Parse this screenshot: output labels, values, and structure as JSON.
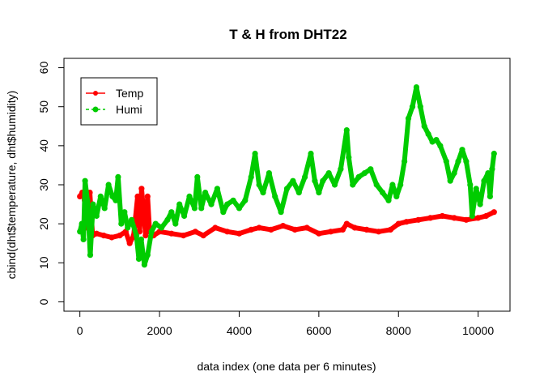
{
  "chart_data": {
    "type": "line",
    "title": "T & H from DHT22",
    "xlabel": "data index (one data per 6 minutes)",
    "ylabel": "cbind(dht$temperature, dht$humidity)",
    "xlim": [
      -400,
      10800
    ],
    "ylim": [
      -2.4,
      62.4
    ],
    "xticks": [
      "0",
      "2000",
      "4000",
      "6000",
      "8000",
      "10000"
    ],
    "yticks": [
      "0",
      "10",
      "20",
      "30",
      "40",
      "50",
      "60"
    ],
    "xtick_values": [
      0,
      2000,
      4000,
      6000,
      8000,
      10000
    ],
    "ytick_values": [
      0,
      10,
      20,
      30,
      40,
      50,
      60
    ],
    "grid": false,
    "legend_position": "top-left",
    "series": [
      {
        "name": "Temp",
        "color": "#ff0000",
        "style": "solid",
        "points": [
          [
            0,
            27
          ],
          [
            60,
            28
          ],
          [
            120,
            26
          ],
          [
            180,
            19
          ],
          [
            250,
            28
          ],
          [
            320,
            17
          ],
          [
            420,
            17.5
          ],
          [
            600,
            17
          ],
          [
            800,
            16.5
          ],
          [
            1000,
            17
          ],
          [
            1150,
            18
          ],
          [
            1250,
            15
          ],
          [
            1350,
            17
          ],
          [
            1450,
            27
          ],
          [
            1500,
            18
          ],
          [
            1550,
            29
          ],
          [
            1650,
            17
          ],
          [
            1700,
            27
          ],
          [
            1750,
            18
          ],
          [
            1850,
            17
          ],
          [
            2000,
            18
          ],
          [
            2300,
            17.5
          ],
          [
            2600,
            17
          ],
          [
            2900,
            18
          ],
          [
            3100,
            17
          ],
          [
            3400,
            19
          ],
          [
            3700,
            18
          ],
          [
            4000,
            17.5
          ],
          [
            4300,
            18.5
          ],
          [
            4500,
            19
          ],
          [
            4800,
            18.5
          ],
          [
            5100,
            19.5
          ],
          [
            5400,
            18.5
          ],
          [
            5700,
            19
          ],
          [
            6000,
            17.5
          ],
          [
            6300,
            18
          ],
          [
            6600,
            18.5
          ],
          [
            6700,
            20
          ],
          [
            6900,
            19
          ],
          [
            7200,
            18.5
          ],
          [
            7500,
            18
          ],
          [
            7800,
            18.5
          ],
          [
            8000,
            20
          ],
          [
            8200,
            20.5
          ],
          [
            8500,
            21
          ],
          [
            8800,
            21.5
          ],
          [
            9100,
            22
          ],
          [
            9400,
            21.5
          ],
          [
            9700,
            21
          ],
          [
            10000,
            21.5
          ],
          [
            10200,
            22
          ],
          [
            10400,
            23
          ]
        ]
      },
      {
        "name": "Humi",
        "color": "#00cc00",
        "style": "dashed",
        "points": [
          [
            0,
            18
          ],
          [
            50,
            20
          ],
          [
            90,
            16
          ],
          [
            130,
            31
          ],
          [
            190,
            26
          ],
          [
            260,
            12
          ],
          [
            330,
            25
          ],
          [
            420,
            22
          ],
          [
            520,
            27
          ],
          [
            620,
            24
          ],
          [
            720,
            30
          ],
          [
            820,
            27
          ],
          [
            900,
            26
          ],
          [
            960,
            32
          ],
          [
            1040,
            20
          ],
          [
            1120,
            23
          ],
          [
            1200,
            19
          ],
          [
            1300,
            21
          ],
          [
            1420,
            17
          ],
          [
            1480,
            11
          ],
          [
            1540,
            16
          ],
          [
            1620,
            9.5
          ],
          [
            1700,
            12
          ],
          [
            1800,
            18
          ],
          [
            1900,
            20
          ],
          [
            2050,
            19
          ],
          [
            2200,
            21
          ],
          [
            2300,
            23
          ],
          [
            2400,
            20
          ],
          [
            2500,
            25
          ],
          [
            2620,
            22
          ],
          [
            2750,
            27
          ],
          [
            2880,
            24
          ],
          [
            2950,
            32
          ],
          [
            3050,
            24
          ],
          [
            3150,
            28
          ],
          [
            3300,
            25
          ],
          [
            3450,
            29
          ],
          [
            3600,
            23
          ],
          [
            3700,
            25
          ],
          [
            3850,
            26
          ],
          [
            4000,
            24
          ],
          [
            4150,
            26
          ],
          [
            4300,
            32
          ],
          [
            4400,
            38
          ],
          [
            4500,
            30
          ],
          [
            4600,
            28
          ],
          [
            4750,
            33
          ],
          [
            4900,
            27
          ],
          [
            5050,
            23
          ],
          [
            5200,
            29
          ],
          [
            5350,
            31
          ],
          [
            5500,
            28
          ],
          [
            5650,
            32
          ],
          [
            5800,
            38
          ],
          [
            5900,
            31
          ],
          [
            6000,
            28
          ],
          [
            6100,
            31
          ],
          [
            6250,
            33
          ],
          [
            6400,
            30
          ],
          [
            6550,
            34
          ],
          [
            6700,
            44
          ],
          [
            6750,
            37
          ],
          [
            6850,
            30
          ],
          [
            7000,
            32
          ],
          [
            7150,
            33
          ],
          [
            7300,
            34
          ],
          [
            7450,
            30
          ],
          [
            7600,
            28
          ],
          [
            7750,
            26
          ],
          [
            7850,
            30
          ],
          [
            7950,
            27
          ],
          [
            8050,
            30
          ],
          [
            8150,
            36
          ],
          [
            8250,
            47
          ],
          [
            8350,
            50
          ],
          [
            8450,
            55
          ],
          [
            8550,
            50
          ],
          [
            8650,
            45
          ],
          [
            8750,
            43
          ],
          [
            8850,
            41
          ],
          [
            8950,
            41.5
          ],
          [
            9050,
            40
          ],
          [
            9200,
            36
          ],
          [
            9300,
            31
          ],
          [
            9400,
            33
          ],
          [
            9500,
            36
          ],
          [
            9600,
            39
          ],
          [
            9700,
            36
          ],
          [
            9800,
            30
          ],
          [
            9850,
            22
          ],
          [
            9950,
            29
          ],
          [
            10050,
            25
          ],
          [
            10150,
            31
          ],
          [
            10250,
            33
          ],
          [
            10300,
            27
          ],
          [
            10350,
            34
          ],
          [
            10400,
            38
          ]
        ]
      }
    ]
  }
}
